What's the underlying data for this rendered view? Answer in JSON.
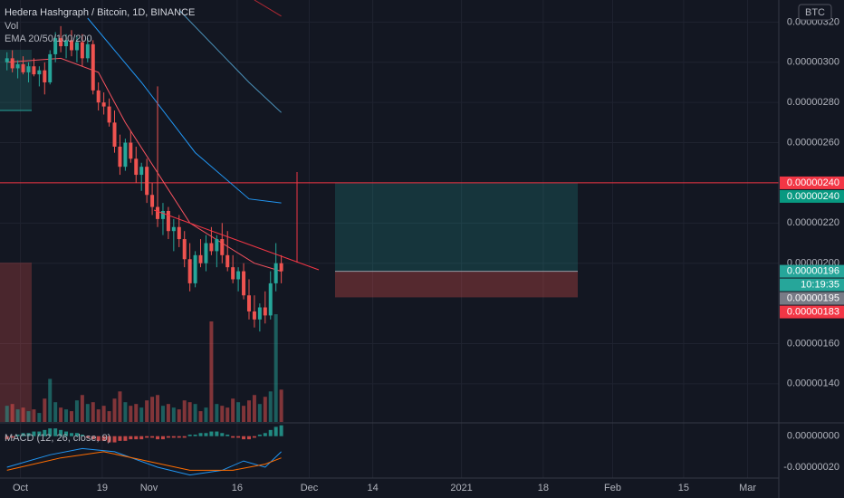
{
  "chart_data": {
    "type": "candlestick",
    "title": "Hedera Hashgraph / Bitcoin, 1D, BINANCE",
    "volume_label": "Vol",
    "ema_label": "EMA 20/50/100/200",
    "macd_label": "MACD (12, 26, close, 9)",
    "currency": "BTC",
    "up_color": "#26a69a",
    "down_color": "#ef5350",
    "open": [
      3e-06,
      3.02e-06,
      2.97e-06,
      2.99e-06,
      2.95e-06,
      2.98e-06,
      2.94e-06,
      2.96e-06,
      2.9e-06,
      3.04e-06,
      3.12e-06,
      3.08e-06,
      3.11e-06,
      3.06e-06,
      3.1e-06,
      3.02e-06,
      3.09e-06,
      2.86e-06,
      2.8e-06,
      2.78e-06,
      2.7e-06,
      2.58e-06,
      2.48e-06,
      2.6e-06,
      2.52e-06,
      2.44e-06,
      2.48e-06,
      2.34e-06,
      2.28e-06,
      2.22e-06,
      2.26e-06,
      2.16e-06,
      2.18e-06,
      2.12e-06,
      2.02e-06,
      1.9e-06,
      2.04e-06,
      2e-06,
      2.1e-06,
      2.06e-06,
      2.12e-06,
      2.04e-06,
      1.98e-06,
      1.92e-06,
      1.96e-06,
      1.84e-06,
      1.76e-06,
      1.72e-06,
      1.78e-06,
      1.74e-06,
      1.9e-06,
      2e-06
    ],
    "high": [
      3.05e-06,
      3.06e-06,
      3.01e-06,
      3.03e-06,
      3e-06,
      3.02e-06,
      2.98e-06,
      3e-06,
      3.06e-06,
      3.15e-06,
      3.18e-06,
      3.14e-06,
      3.16e-06,
      3.13e-06,
      3.14e-06,
      3.12e-06,
      3.11e-06,
      2.9e-06,
      2.85e-06,
      2.82e-06,
      2.76e-06,
      2.64e-06,
      2.62e-06,
      2.66e-06,
      2.58e-06,
      2.5e-06,
      2.52e-06,
      2.4e-06,
      2.88e-06,
      2.3e-06,
      2.28e-06,
      2.22e-06,
      2.24e-06,
      2.16e-06,
      2.1e-06,
      2.06e-06,
      2.12e-06,
      2.14e-06,
      2.18e-06,
      2.14e-06,
      2.2e-06,
      2.16e-06,
      2.04e-06,
      1.98e-06,
      2e-06,
      1.92e-06,
      1.84e-06,
      1.8e-06,
      1.86e-06,
      1.96e-06,
      2.1e-06,
      2.04e-06
    ],
    "low": [
      2.96e-06,
      2.95e-06,
      2.92e-06,
      2.94e-06,
      2.9e-06,
      2.93e-06,
      2.88e-06,
      2.84e-06,
      2.89e-06,
      3e-06,
      3.05e-06,
      3.02e-06,
      3.03e-06,
      3e-06,
      2.98e-06,
      3e-06,
      2.84e-06,
      2.76e-06,
      2.74e-06,
      2.68e-06,
      2.55e-06,
      2.44e-06,
      2.46e-06,
      2.5e-06,
      2.4e-06,
      2.36e-06,
      2.3e-06,
      2.24e-06,
      2.18e-06,
      2.14e-06,
      2.12e-06,
      2.06e-06,
      2.08e-06,
      1.98e-06,
      1.86e-06,
      1.88e-06,
      1.98e-06,
      1.96e-06,
      2.04e-06,
      1.98e-06,
      2e-06,
      1.96e-06,
      1.9e-06,
      1.86e-06,
      1.82e-06,
      1.72e-06,
      1.68e-06,
      1.66e-06,
      1.7e-06,
      1.72e-06,
      1.86e-06,
      1.9e-06
    ],
    "close": [
      3.02e-06,
      2.97e-06,
      2.99e-06,
      2.95e-06,
      2.98e-06,
      2.94e-06,
      2.96e-06,
      2.9e-06,
      3.04e-06,
      3.12e-06,
      3.08e-06,
      3.11e-06,
      3.06e-06,
      3.1e-06,
      3.02e-06,
      3.09e-06,
      2.86e-06,
      2.8e-06,
      2.78e-06,
      2.7e-06,
      2.58e-06,
      2.48e-06,
      2.6e-06,
      2.52e-06,
      2.44e-06,
      2.48e-06,
      2.34e-06,
      2.28e-06,
      2.22e-06,
      2.26e-06,
      2.16e-06,
      2.18e-06,
      2.12e-06,
      2.02e-06,
      1.9e-06,
      2.04e-06,
      2e-06,
      2.1e-06,
      2.06e-06,
      2.12e-06,
      2.04e-06,
      1.98e-06,
      1.92e-06,
      1.96e-06,
      1.84e-06,
      1.76e-06,
      1.72e-06,
      1.78e-06,
      1.74e-06,
      1.9e-06,
      2e-06,
      1.96e-06
    ],
    "volume": [
      18,
      20,
      14,
      16,
      12,
      14,
      10,
      26,
      48,
      22,
      16,
      14,
      12,
      24,
      30,
      20,
      22,
      14,
      18,
      12,
      26,
      34,
      22,
      18,
      20,
      16,
      24,
      28,
      30,
      18,
      20,
      16,
      14,
      24,
      22,
      20,
      12,
      16,
      112,
      20,
      18,
      16,
      26,
      22,
      18,
      24,
      30,
      20,
      28,
      34,
      120,
      36
    ],
    "volume_lim": [
      0,
      470
    ],
    "ema": [
      {
        "color": "#f7525f",
        "x": [
          0,
          10,
          17,
          22,
          28,
          34,
          40,
          46,
          51
        ],
        "values": [
          3e-06,
          3.02e-06,
          2.95e-06,
          2.7e-06,
          2.45e-06,
          2.2e-06,
          2.1e-06,
          2e-06,
          1.96e-06
        ]
      },
      {
        "color": "#2196f3",
        "x": [
          15,
          25,
          35,
          45,
          51
        ],
        "values": [
          3.22e-06,
          2.9e-06,
          2.55e-06,
          2.32e-06,
          2.3e-06
        ]
      },
      {
        "color": "#4a90b8",
        "x": [
          32,
          45,
          51
        ],
        "values": [
          3.26e-06,
          2.9e-06,
          2.75e-06
        ]
      },
      {
        "color": "#b22833",
        "x": [
          46,
          51
        ],
        "values": [
          3.31e-06,
          3.23e-06
        ]
      }
    ],
    "macd_hist": [
      -2e-08,
      -1e-08,
      1e-08,
      2e-08,
      2e-08,
      3e-08,
      3e-08,
      4e-08,
      5e-08,
      5e-08,
      4e-08,
      3e-08,
      2e-08,
      2e-08,
      1e-08,
      -1e-08,
      -2e-08,
      -3e-08,
      -3e-08,
      -4e-08,
      -4e-08,
      -3e-08,
      -3e-08,
      -2e-08,
      -2e-08,
      -2e-08,
      -1e-08,
      -1e-08,
      -2e-08,
      -2e-08,
      -1e-08,
      -1e-08,
      -1e-08,
      -1e-08,
      1e-08,
      1e-08,
      2e-08,
      2e-08,
      3e-08,
      3e-08,
      2e-08,
      1e-08,
      -1e-08,
      -1e-08,
      -2e-08,
      -2e-08,
      -1e-08,
      1e-08,
      2e-08,
      4e-08,
      6e-08,
      7e-08
    ],
    "macd_line": {
      "color": "#2196f3",
      "x": [
        0,
        8,
        14,
        20,
        28,
        34,
        40,
        44,
        48,
        51
      ],
      "values": [
        -2e-07,
        -1.2e-07,
        -8e-08,
        -1e-07,
        -2e-07,
        -2.5e-07,
        -2.2e-07,
        -1.6e-07,
        -2e-07,
        -1e-07
      ]
    },
    "signal_line": {
      "color": "#ff6d00",
      "x": [
        0,
        10,
        18,
        26,
        34,
        42,
        48,
        51
      ],
      "values": [
        -2.2e-07,
        -1.4e-07,
        -1e-07,
        -1.6e-07,
        -2.2e-07,
        -2.2e-07,
        -1.8e-07,
        -1.4e-07
      ]
    },
    "ylim": [
      1.21e-06,
      3.31e-06
    ],
    "yticks": [
      {
        "value": 3.2e-06,
        "label": "0.00000320"
      },
      {
        "value": 3e-06,
        "label": "0.00000300"
      },
      {
        "value": 2.8e-06,
        "label": "0.00000280"
      },
      {
        "value": 2.6e-06,
        "label": "0.00000260"
      },
      {
        "value": 2.2e-06,
        "label": "0.00000220"
      },
      {
        "value": 2e-06,
        "label": "0.00000200"
      },
      {
        "value": 1.6e-06,
        "label": "0.00000160"
      },
      {
        "value": 1.4e-06,
        "label": "0.00000140"
      }
    ],
    "macd_ylim": [
      -2.7e-07,
      8e-08
    ],
    "macd_yticks": [
      {
        "value": 0,
        "label": "0.00000000"
      },
      {
        "value": -2e-07,
        "label": "-0.00000020"
      }
    ],
    "xlim": [
      -1.3,
      143.5
    ],
    "xticks": [
      {
        "value": 2.5,
        "label": "Oct"
      },
      {
        "value": 17.7,
        "label": "19"
      },
      {
        "value": 26.4,
        "label": "Nov"
      },
      {
        "value": 42.8,
        "label": "16"
      },
      {
        "value": 56.2,
        "label": "Dec"
      },
      {
        "value": 68,
        "label": "14"
      },
      {
        "value": 84.5,
        "label": "2021"
      },
      {
        "value": 99.7,
        "label": "18"
      },
      {
        "value": 112.6,
        "label": "Feb"
      },
      {
        "value": 125.8,
        "label": "15"
      },
      {
        "value": 137.7,
        "label": "Mar"
      }
    ],
    "hline": {
      "value": 2.4e-06,
      "color": "#f23645"
    },
    "position": {
      "target": 2.4e-06,
      "entry": 1.96e-06,
      "stop": 1.83e-06
    },
    "price_labels": [
      {
        "value": 2.4e-06,
        "label": "0.00000240",
        "color": "#f23645"
      },
      {
        "value": 2.4e-06,
        "label": "0.00000240",
        "color": "#089981"
      },
      {
        "value": 1.96e-06,
        "label": "0.00000196",
        "color": "#26a69a"
      },
      {
        "value": 1.95e-06,
        "label": "0.00000195",
        "color": "#787b86"
      },
      {
        "value": 1.83e-06,
        "label": "0.00000183",
        "color": "#f23645"
      }
    ],
    "countdown": "10:19:35",
    "grid": true
  }
}
